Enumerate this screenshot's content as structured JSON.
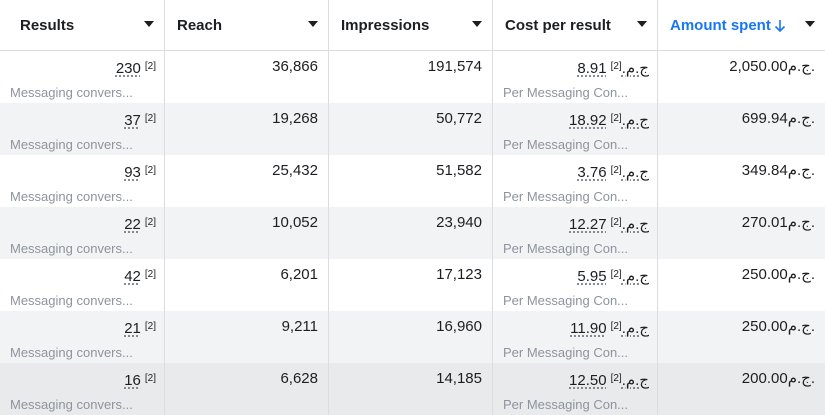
{
  "columns": [
    {
      "label": "Results"
    },
    {
      "label": "Reach"
    },
    {
      "label": "Impressions"
    },
    {
      "label": "Cost per result"
    },
    {
      "label": "Amount spent",
      "sorted": "descending"
    }
  ],
  "footnote": "[2]",
  "currency": "ج.م.",
  "accent_color": "#1877f2",
  "rows": [
    {
      "results": "230",
      "results_sub": "Messaging convers...",
      "reach": "36,866",
      "impressions": "191,574",
      "cost": "8.91",
      "cost_sub": "Per Messaging Con...",
      "spent": "2,050.00"
    },
    {
      "results": "37",
      "results_sub": "Messaging convers...",
      "reach": "19,268",
      "impressions": "50,772",
      "cost": "18.92",
      "cost_sub": "Per Messaging Con...",
      "spent": "699.94"
    },
    {
      "results": "93",
      "results_sub": "Messaging convers...",
      "reach": "25,432",
      "impressions": "51,582",
      "cost": "3.76",
      "cost_sub": "Per Messaging Con...",
      "spent": "349.84"
    },
    {
      "results": "22",
      "results_sub": "Messaging convers...",
      "reach": "10,052",
      "impressions": "23,940",
      "cost": "12.27",
      "cost_sub": "Per Messaging Con...",
      "spent": "270.01"
    },
    {
      "results": "42",
      "results_sub": "Messaging convers...",
      "reach": "6,201",
      "impressions": "17,123",
      "cost": "5.95",
      "cost_sub": "Per Messaging Con...",
      "spent": "250.00"
    },
    {
      "results": "21",
      "results_sub": "Messaging convers...",
      "reach": "9,211",
      "impressions": "16,960",
      "cost": "11.90",
      "cost_sub": "Per Messaging Con...",
      "spent": "250.00"
    },
    {
      "results": "16",
      "results_sub": "Messaging convers...",
      "reach": "6,628",
      "impressions": "14,185",
      "cost": "12.50",
      "cost_sub": "Per Messaging Con...",
      "spent": "200.00"
    }
  ]
}
